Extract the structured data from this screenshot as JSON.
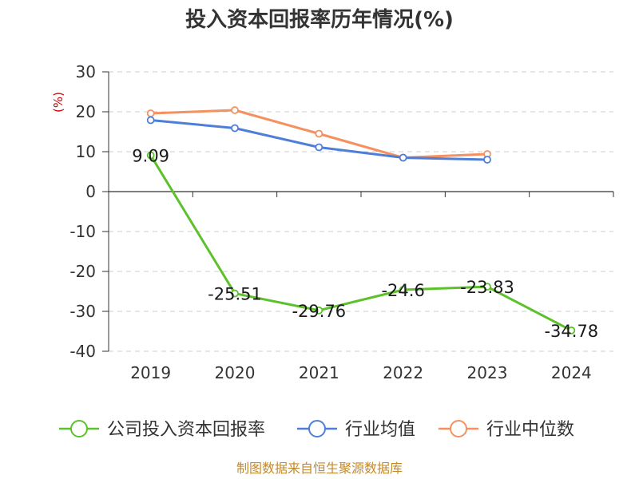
{
  "chart_data": {
    "type": "line",
    "title": "投入资本回报率历年情况(%)",
    "unit_label": "(%)",
    "categories": [
      "2019",
      "2020",
      "2021",
      "2022",
      "2023",
      "2024"
    ],
    "ylim": [
      -40,
      30
    ],
    "yticks": [
      30,
      20,
      10,
      0,
      -10,
      -20,
      -30,
      -40
    ],
    "grid": "horizontal dashed",
    "legend_position": "bottom",
    "series": [
      {
        "name": "公司投入资本回报率",
        "color": "#5cc12a",
        "values": [
          9.09,
          -25.51,
          -29.76,
          -24.6,
          -23.83,
          -34.78
        ],
        "labels": [
          "9.09",
          "-25.51",
          "-29.76",
          "-24.6",
          "-23.83",
          "-34.78"
        ]
      },
      {
        "name": "行业均值",
        "color": "#4e7fd8",
        "values": [
          17.9,
          15.9,
          11.1,
          8.5,
          8.0,
          null
        ]
      },
      {
        "name": "行业中位数",
        "color": "#f59060",
        "values": [
          19.6,
          20.4,
          14.5,
          8.5,
          9.4,
          null
        ]
      }
    ],
    "source": "制图数据来自恒生聚源数据库"
  }
}
